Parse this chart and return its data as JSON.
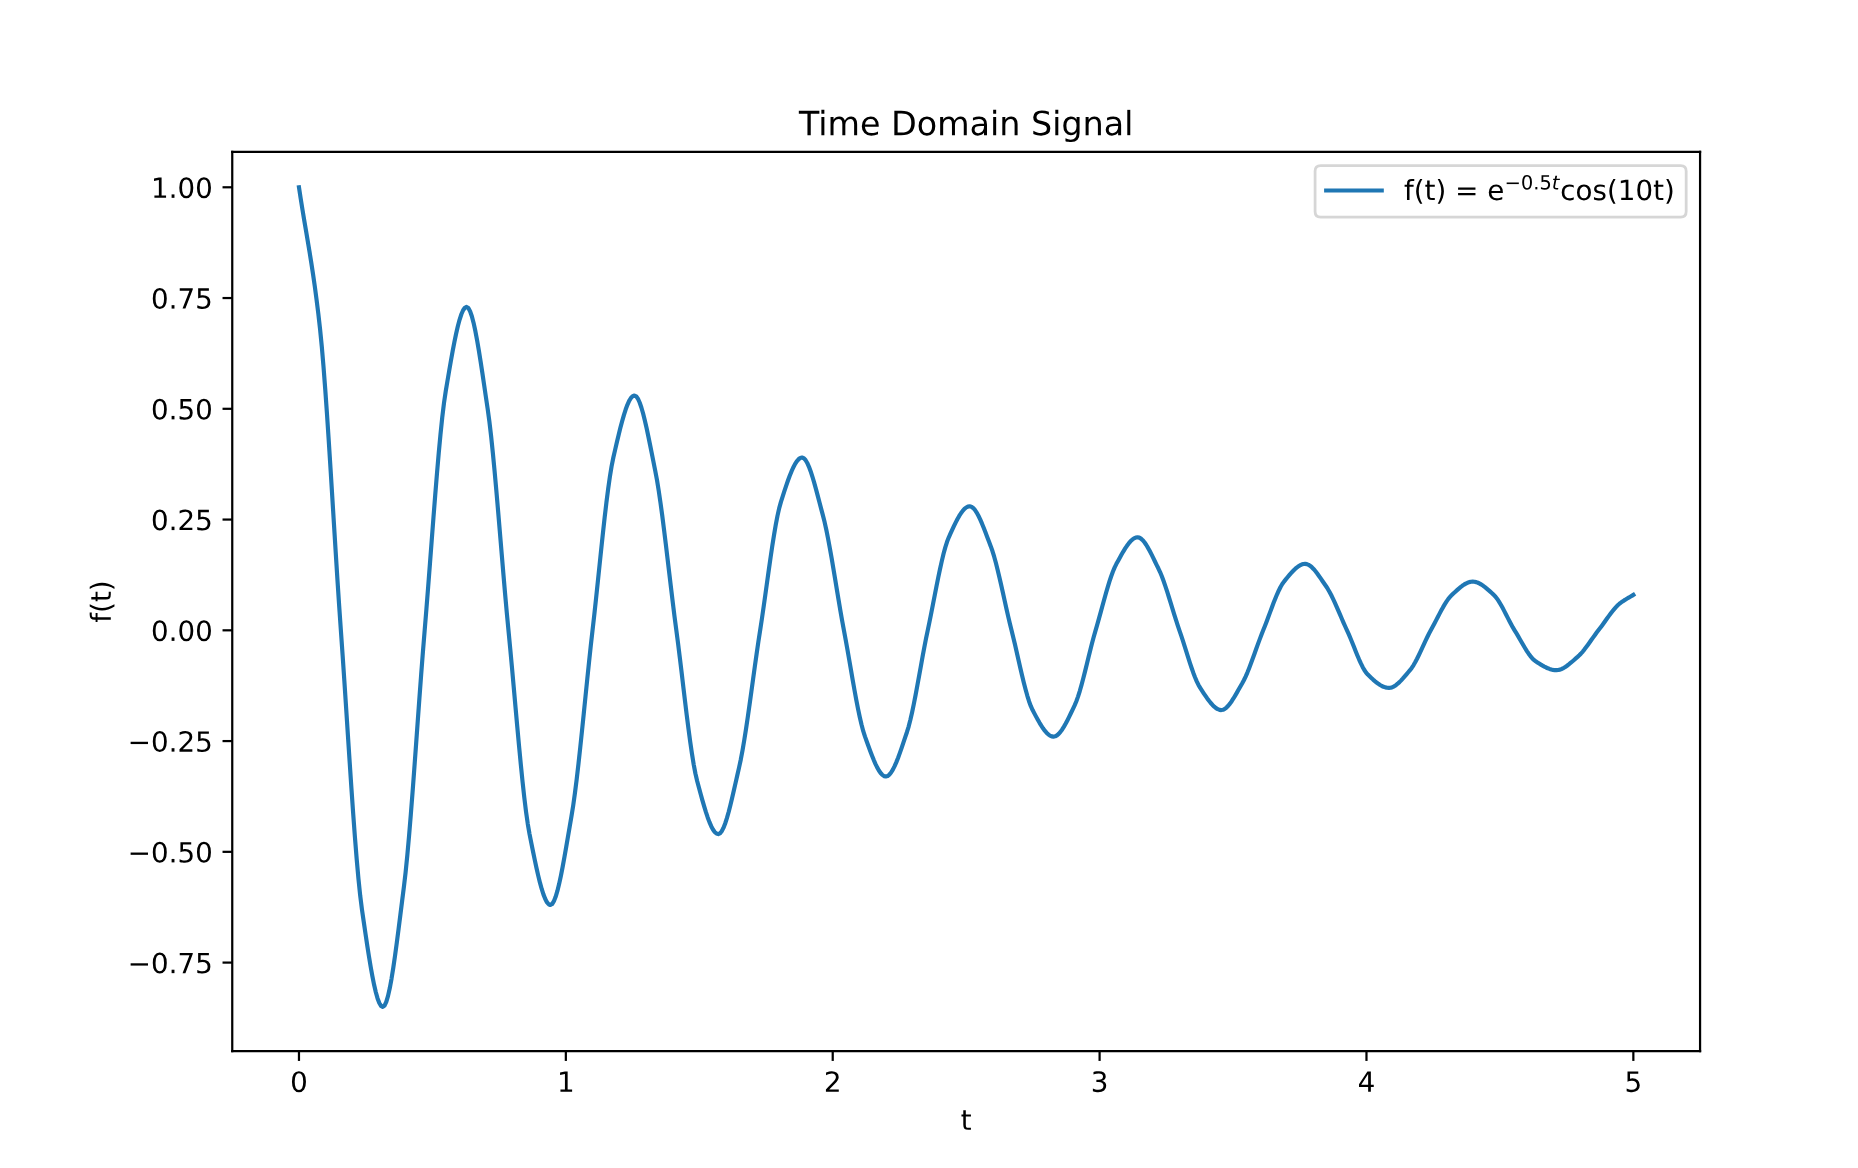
{
  "chart_data": {
    "type": "line",
    "title": "Time Domain Signal",
    "xlabel": "t",
    "ylabel": "f(t)",
    "x": [
      0,
      0.079,
      0.157,
      0.236,
      0.314,
      0.393,
      0.471,
      0.55,
      0.628,
      0.707,
      0.785,
      0.864,
      0.942,
      1.021,
      1.1,
      1.178,
      1.257,
      1.335,
      1.414,
      1.492,
      1.571,
      1.649,
      1.728,
      1.806,
      1.885,
      1.963,
      2.042,
      2.121,
      2.199,
      2.278,
      2.356,
      2.435,
      2.513,
      2.592,
      2.67,
      2.749,
      2.827,
      2.906,
      2.985,
      3.063,
      3.142,
      3.22,
      3.299,
      3.377,
      3.456,
      3.534,
      3.613,
      3.691,
      3.77,
      3.848,
      3.927,
      4.005,
      4.084,
      4.163,
      4.241,
      4.32,
      4.398,
      4.477,
      4.555,
      4.634,
      4.712,
      4.791,
      4.869,
      4.948,
      5.0
    ],
    "series": [
      {
        "name": "f(t) = e$^{−0.5t}$cos(10t)",
        "color": "#1f77b4",
        "values": [
          1.0,
          0.68,
          0,
          -0.63,
          -0.85,
          -0.58,
          0,
          0.54,
          0.73,
          0.5,
          0,
          -0.46,
          -0.62,
          -0.42,
          0,
          0.39,
          0.53,
          0.36,
          0,
          -0.34,
          -0.46,
          -0.31,
          0,
          0.29,
          0.39,
          0.26,
          0,
          -0.24,
          -0.33,
          -0.23,
          0,
          0.21,
          0.28,
          0.19,
          0,
          -0.18,
          -0.24,
          -0.17,
          0,
          0.15,
          0.21,
          0.14,
          0,
          -0.13,
          -0.18,
          -0.12,
          0,
          0.11,
          0.15,
          0.1,
          0,
          -0.1,
          -0.13,
          -0.09,
          0,
          0.08,
          0.11,
          0.08,
          0,
          -0.07,
          -0.09,
          -0.06,
          0,
          0.06,
          0.08
        ]
      }
    ],
    "xlim": [
      -0.25,
      5.25
    ],
    "xticks": [
      0,
      1,
      2,
      3,
      4,
      5
    ],
    "ylim": [
      -0.95,
      1.08
    ],
    "yticks": [
      {
        "value": -0.75,
        "label": "−0.75"
      },
      {
        "value": -0.5,
        "label": "−0.50"
      },
      {
        "value": -0.25,
        "label": "−0.25"
      },
      {
        "value": 0,
        "label": "0.00"
      },
      {
        "value": 0.25,
        "label": "0.25"
      },
      {
        "value": 0.5,
        "label": "0.50"
      },
      {
        "value": 0.75,
        "label": "0.75"
      },
      {
        "value": 1.0,
        "label": "1.00"
      }
    ],
    "grid": false,
    "legend": "top right",
    "marker": "none",
    "line_style": "solid"
  }
}
